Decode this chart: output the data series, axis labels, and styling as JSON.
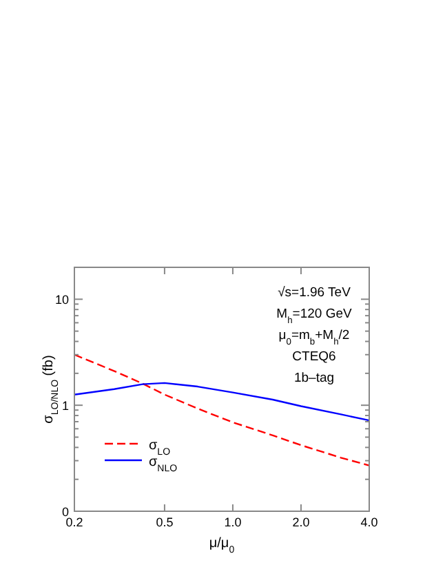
{
  "chart_data": {
    "type": "line",
    "xlabel": "μ/μ$_{0}$",
    "ylabel": "σ$_{LO/NLO}$ (fb)",
    "log": "xy",
    "xlim": [
      0.2,
      4.0
    ],
    "xticks": [
      0.2,
      0.5,
      {
        "value": 1.0,
        "label": "1.0"
      },
      {
        "value": 2.0,
        "label": "2.0"
      },
      {
        "value": 4.0,
        "label": "4.0"
      }
    ],
    "ylim": [
      0.1,
      20
    ],
    "yticks": [
      {
        "value": 0.1,
        "label": "0"
      },
      {
        "value": 0.2,
        "label": null
      },
      {
        "value": 0.3,
        "label": null
      },
      {
        "value": 0.4,
        "label": null
      },
      {
        "value": 0.5,
        "label": null
      },
      {
        "value": 0.6,
        "label": null
      },
      {
        "value": 0.7,
        "label": null
      },
      {
        "value": 0.8,
        "label": null
      },
      {
        "value": 0.9,
        "label": null
      },
      1,
      {
        "value": 2,
        "label": null
      },
      {
        "value": 3,
        "label": null
      },
      {
        "value": 4,
        "label": null
      },
      {
        "value": 5,
        "label": null
      },
      {
        "value": 6,
        "label": null
      },
      {
        "value": 7,
        "label": null
      },
      {
        "value": 8,
        "label": null
      },
      {
        "value": 9,
        "label": null
      },
      10
    ],
    "x": [
      0.2,
      0.3,
      0.4,
      0.5,
      0.7,
      1.0,
      1.5,
      2.0,
      3.0,
      4.0
    ],
    "series": [
      {
        "name": "σ$_{LO}$",
        "color": "#ff0000",
        "line_style": "dashed",
        "values": [
          3.0,
          2.1,
          1.6,
          1.26,
          0.93,
          0.69,
          0.52,
          0.42,
          0.32,
          0.27
        ]
      },
      {
        "name": "σ$_{NLO}$",
        "color": "#0000ff",
        "line_style": "solid",
        "values": [
          1.26,
          1.42,
          1.58,
          1.62,
          1.5,
          1.32,
          1.13,
          0.98,
          0.82,
          0.72
        ]
      }
    ],
    "legend": "bottom left",
    "grid": false,
    "annotations": [
      "√s=1.96 TeV",
      "M$_{h}$=120 GeV",
      "μ$_{0}$=m$_{b}$+M$_{h}$/2",
      "CTEQ6",
      "1b–tag"
    ]
  }
}
